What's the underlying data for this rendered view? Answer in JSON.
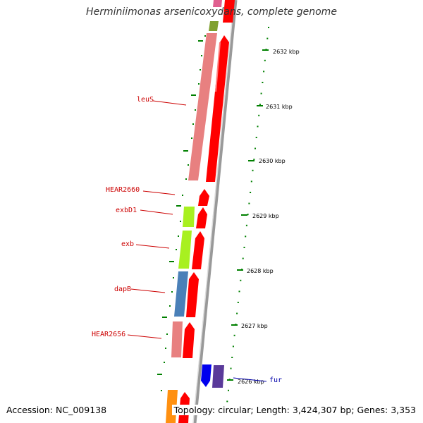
{
  "title": "Herminiimonas arsenicoxydans, complete genome",
  "footer": {
    "accession": "Accession: NC_009138",
    "topology": "Topology: circular; Length: 3,424,307 bp; Genes: 3,353"
  },
  "scale_labels": [
    "2632 kbp",
    "2631 kbp",
    "2630 kbp",
    "2629 kbp",
    "2628 kbp",
    "2627 kbp",
    "2626 kbp"
  ],
  "gene_labels": [
    "leuS",
    "HEAR2660",
    "exbD1",
    "exb",
    "dapB",
    "HEAR2656",
    "fur"
  ],
  "colors": {
    "cds_red": "#ff0000",
    "pink": "#e88080",
    "lime": "#a8f020",
    "steel_blue": "#4a80b8",
    "blue": "#0000ee",
    "purple": "#5a3a9a",
    "orange": "#ff9010",
    "olive": "#80a030",
    "tick_green": "#008000",
    "backbone": "#888888",
    "label_red": "#cc0000",
    "label_blue": "#0000aa"
  }
}
